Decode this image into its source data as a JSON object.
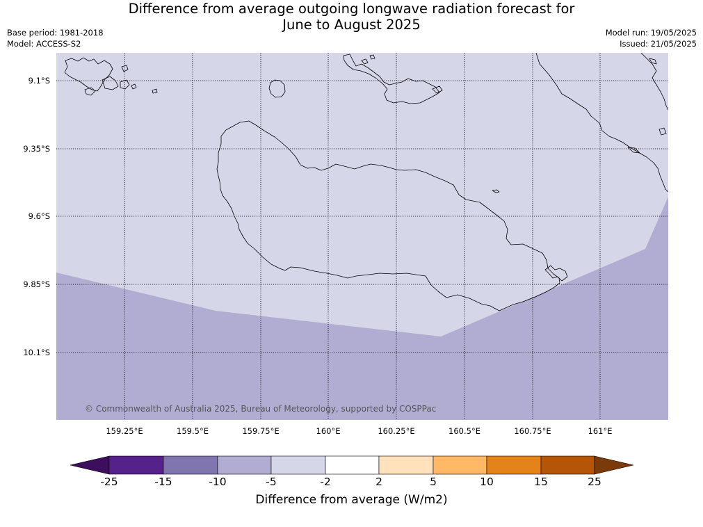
{
  "title_line1": "Difference from average outgoing longwave radiation forecast for",
  "title_line2": "June to August 2025",
  "base_period": "Base period: 1981-2018",
  "model": "Model: ACCESS-S2",
  "model_run": "Model run: 19/05/2025",
  "issued": "Issued: 21/05/2025",
  "copyright": "© Commonwealth of Australia 2025, Bureau of Meteorology, supported by COSPPac",
  "map": {
    "lon_labels": [
      "159.25°E",
      "159.5°E",
      "159.75°E",
      "160°E",
      "160.25°E",
      "160.5°E",
      "160.75°E",
      "161°E"
    ],
    "lat_labels": [
      "9.1°S",
      "9.35°S",
      "9.6°S",
      "9.85°S",
      "10.1°S"
    ],
    "colors": {
      "class_minus5_minus2": "#d6d6e9",
      "class_minus10_minus5": "#b1acd1"
    }
  },
  "colorbar": {
    "label": "Difference from average (W/m2)",
    "ticks": [
      "-25",
      "-15",
      "-10",
      "-5",
      "-2",
      "2",
      "5",
      "10",
      "15",
      "25"
    ],
    "colors": [
      "#3d0d5e",
      "#55228b",
      "#8075af",
      "#b1acd1",
      "#d6d6e9",
      "#ffffff",
      "#ffe1bb",
      "#ffb865",
      "#e3831a",
      "#b45507",
      "#7b3a0a"
    ]
  }
}
